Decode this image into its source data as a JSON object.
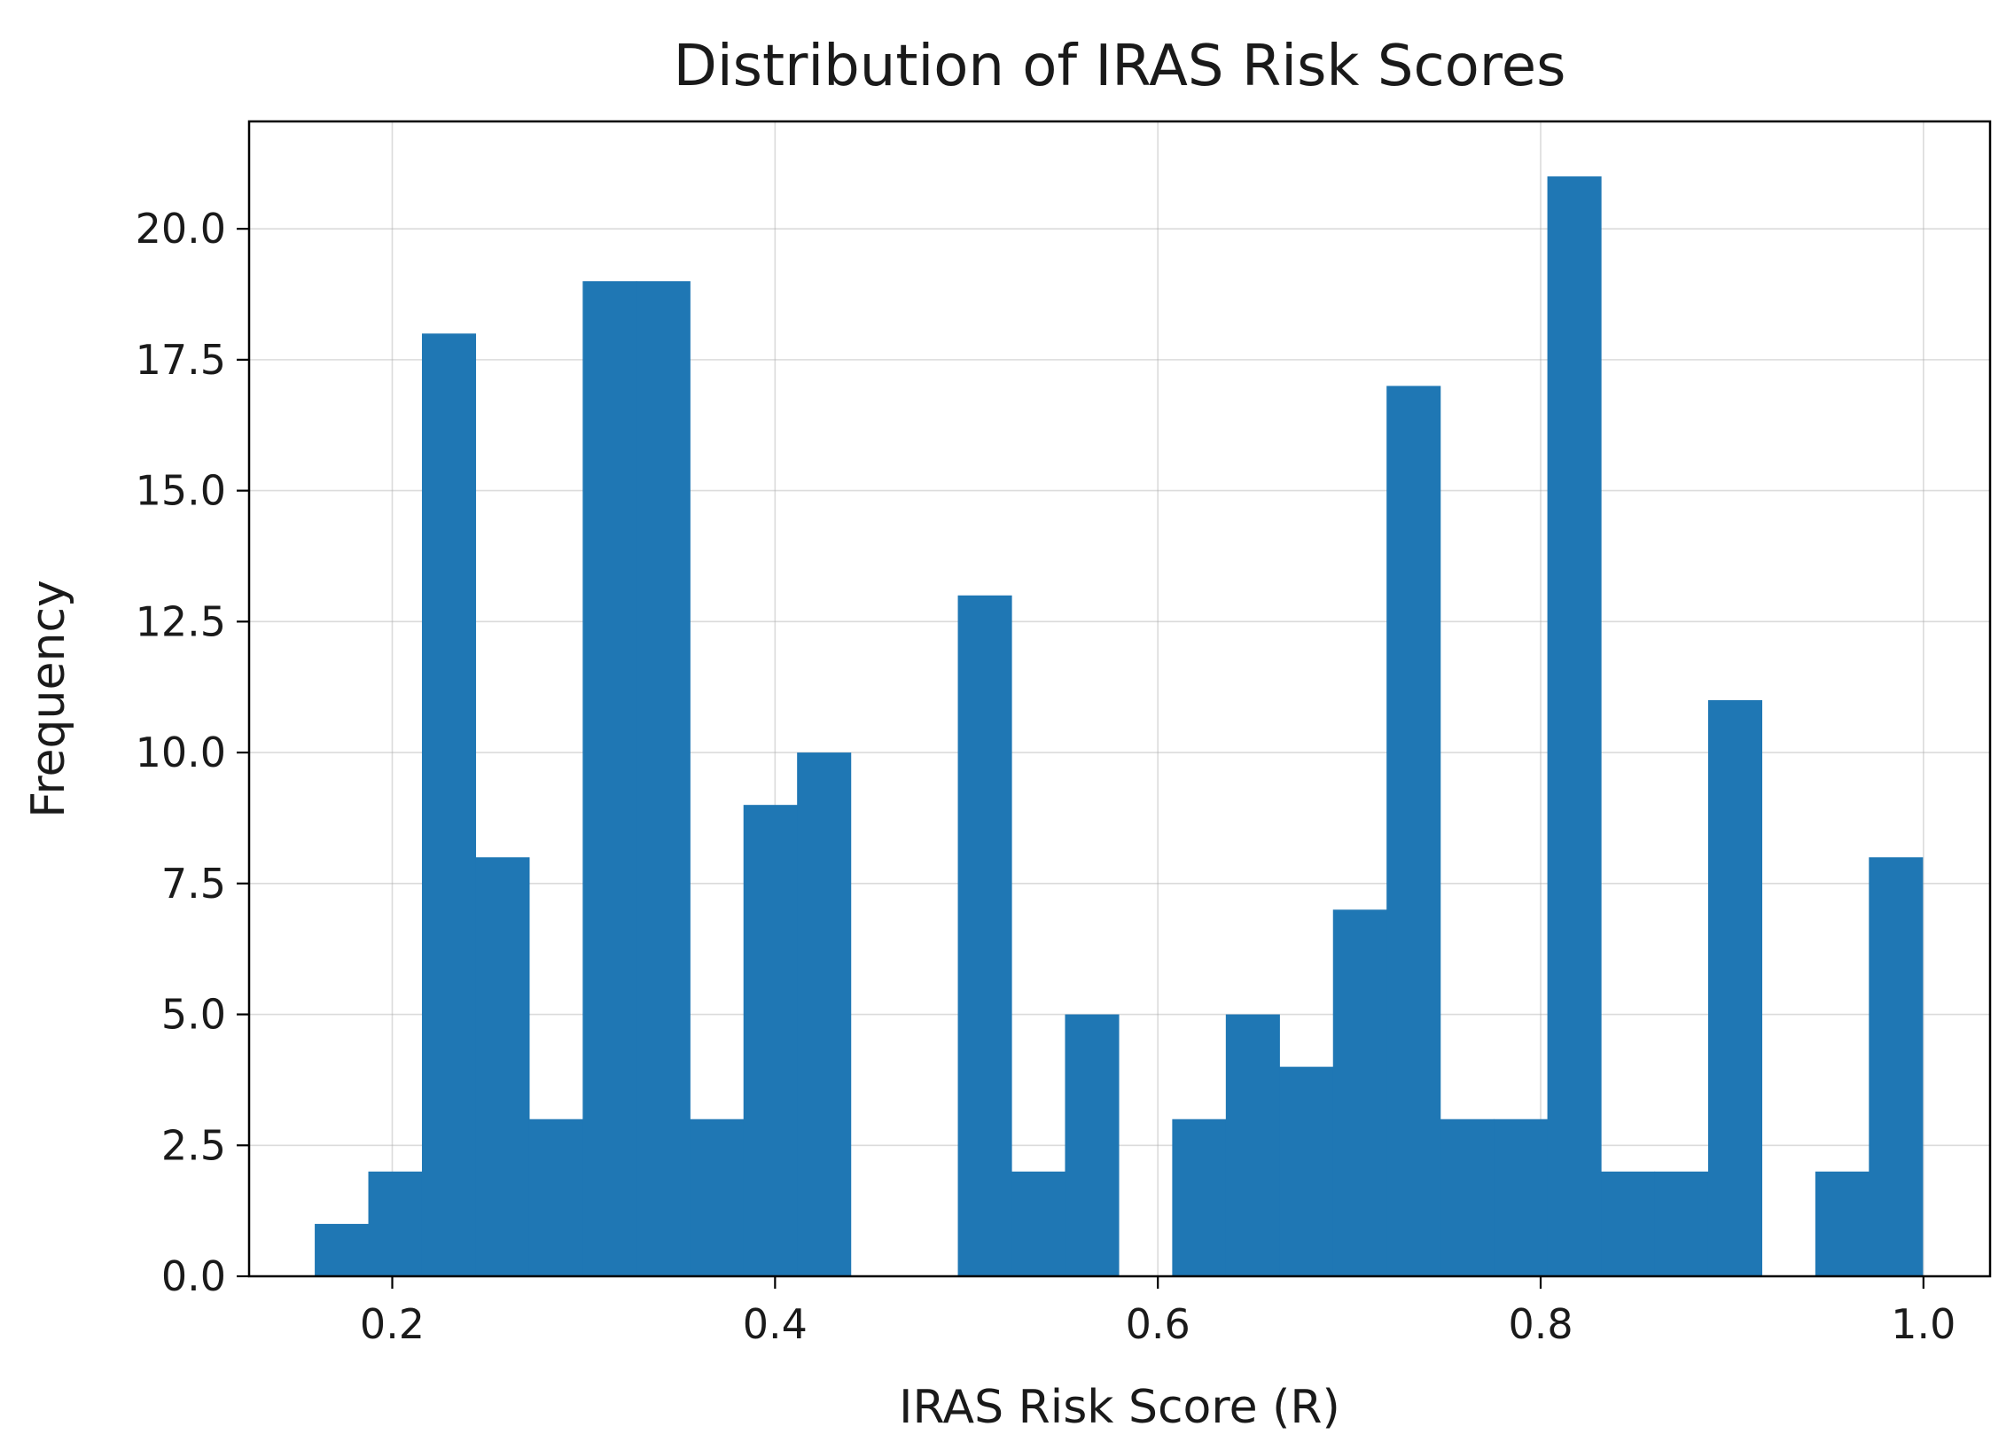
{
  "chart_data": {
    "type": "bar",
    "title": "Distribution of IRAS Risk Scores",
    "xlabel": "IRAS Risk Score (R)",
    "ylabel": "Frequency",
    "xlim": [
      0.1252,
      1.0348
    ],
    "ylim": [
      0,
      22.05
    ],
    "grid": true,
    "bar_color": "#1f77b4",
    "bins": [
      {
        "x0": 0.1595,
        "x1": 0.1875,
        "value": 1
      },
      {
        "x0": 0.1875,
        "x1": 0.2155,
        "value": 2
      },
      {
        "x0": 0.2155,
        "x1": 0.2435,
        "value": 18
      },
      {
        "x0": 0.2435,
        "x1": 0.2715,
        "value": 8
      },
      {
        "x0": 0.2715,
        "x1": 0.2995,
        "value": 3
      },
      {
        "x0": 0.2995,
        "x1": 0.3275,
        "value": 19
      },
      {
        "x0": 0.3275,
        "x1": 0.3555,
        "value": 19
      },
      {
        "x0": 0.3555,
        "x1": 0.3835,
        "value": 3
      },
      {
        "x0": 0.3835,
        "x1": 0.4115,
        "value": 9
      },
      {
        "x0": 0.4115,
        "x1": 0.4395,
        "value": 10
      },
      {
        "x0": 0.4395,
        "x1": 0.4675,
        "value": 0
      },
      {
        "x0": 0.4675,
        "x1": 0.4955,
        "value": 0
      },
      {
        "x0": 0.4955,
        "x1": 0.5235,
        "value": 13
      },
      {
        "x0": 0.5235,
        "x1": 0.5515,
        "value": 2
      },
      {
        "x0": 0.5515,
        "x1": 0.5795,
        "value": 5
      },
      {
        "x0": 0.5795,
        "x1": 0.6075,
        "value": 0
      },
      {
        "x0": 0.6075,
        "x1": 0.6355,
        "value": 3
      },
      {
        "x0": 0.6355,
        "x1": 0.6635,
        "value": 5
      },
      {
        "x0": 0.6635,
        "x1": 0.6915,
        "value": 4
      },
      {
        "x0": 0.6915,
        "x1": 0.7195,
        "value": 7
      },
      {
        "x0": 0.7195,
        "x1": 0.7475,
        "value": 17
      },
      {
        "x0": 0.7475,
        "x1": 0.7755,
        "value": 3
      },
      {
        "x0": 0.7755,
        "x1": 0.8035,
        "value": 3
      },
      {
        "x0": 0.8035,
        "x1": 0.8315,
        "value": 21
      },
      {
        "x0": 0.8315,
        "x1": 0.8595,
        "value": 2
      },
      {
        "x0": 0.8595,
        "x1": 0.8875,
        "value": 2
      },
      {
        "x0": 0.8875,
        "x1": 0.9155,
        "value": 11
      },
      {
        "x0": 0.9155,
        "x1": 0.9435,
        "value": 0
      },
      {
        "x0": 0.9435,
        "x1": 0.9715,
        "value": 2
      },
      {
        "x0": 0.9715,
        "x1": 0.9995,
        "value": 8
      }
    ],
    "x_ticks": [
      {
        "value": 0.2,
        "label": "0.2"
      },
      {
        "value": 0.4,
        "label": "0.4"
      },
      {
        "value": 0.6,
        "label": "0.6"
      },
      {
        "value": 0.8,
        "label": "0.8"
      },
      {
        "value": 1.0,
        "label": "1.0"
      }
    ],
    "y_ticks": [
      {
        "value": 0,
        "label": "0.0"
      },
      {
        "value": 2.5,
        "label": "2.5"
      },
      {
        "value": 5,
        "label": "5.0"
      },
      {
        "value": 7.5,
        "label": "7.5"
      },
      {
        "value": 10,
        "label": "10.0"
      },
      {
        "value": 12.5,
        "label": "12.5"
      },
      {
        "value": 15,
        "label": "15.0"
      },
      {
        "value": 17.5,
        "label": "17.5"
      },
      {
        "value": 20,
        "label": "20.0"
      }
    ]
  }
}
